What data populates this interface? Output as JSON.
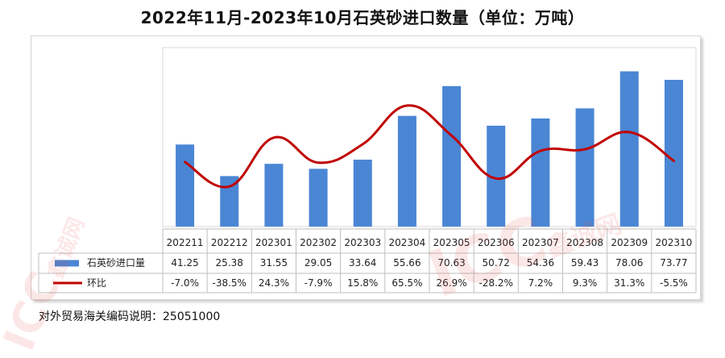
{
  "title": "2022年11月-2023年10月石英砂进口数量（单位：万吨）",
  "footnote": "对外贸易海关编码说明：25051000",
  "watermark": {
    "logo_text": "ICC",
    "sub_text": "鑫诚网"
  },
  "chart_data": {
    "type": "bar",
    "categories": [
      "202211",
      "202212",
      "202301",
      "202302",
      "202303",
      "202304",
      "202305",
      "202306",
      "202307",
      "202308",
      "202309",
      "202310"
    ],
    "series": [
      {
        "name": "石英砂进口量",
        "type": "bar",
        "color": "#4a86d4",
        "values": [
          41.25,
          25.38,
          31.55,
          29.05,
          33.64,
          55.66,
          70.63,
          50.72,
          54.36,
          59.43,
          78.06,
          73.77
        ],
        "labels": [
          "41.25",
          "25.38",
          "31.55",
          "29.05",
          "33.64",
          "55.66",
          "70.63",
          "50.72",
          "54.36",
          "59.43",
          "78.06",
          "73.77"
        ]
      },
      {
        "name": "环比",
        "type": "line",
        "color": "#c00000",
        "unit": "%",
        "values": [
          -7.0,
          -38.5,
          24.3,
          -7.9,
          15.8,
          65.5,
          26.9,
          -28.2,
          7.2,
          9.3,
          31.3,
          -5.5
        ],
        "labels": [
          "-7.0%",
          "-38.5%",
          "24.3%",
          "-7.9%",
          "15.8%",
          "65.5%",
          "26.9%",
          "-28.2%",
          "7.2%",
          "9.3%",
          "31.3%",
          "-5.5%"
        ]
      }
    ],
    "ylim_bar": [
      0,
      90
    ],
    "ylim_line": [
      -90,
      140
    ],
    "grid": false,
    "legend": "data-table-left"
  }
}
